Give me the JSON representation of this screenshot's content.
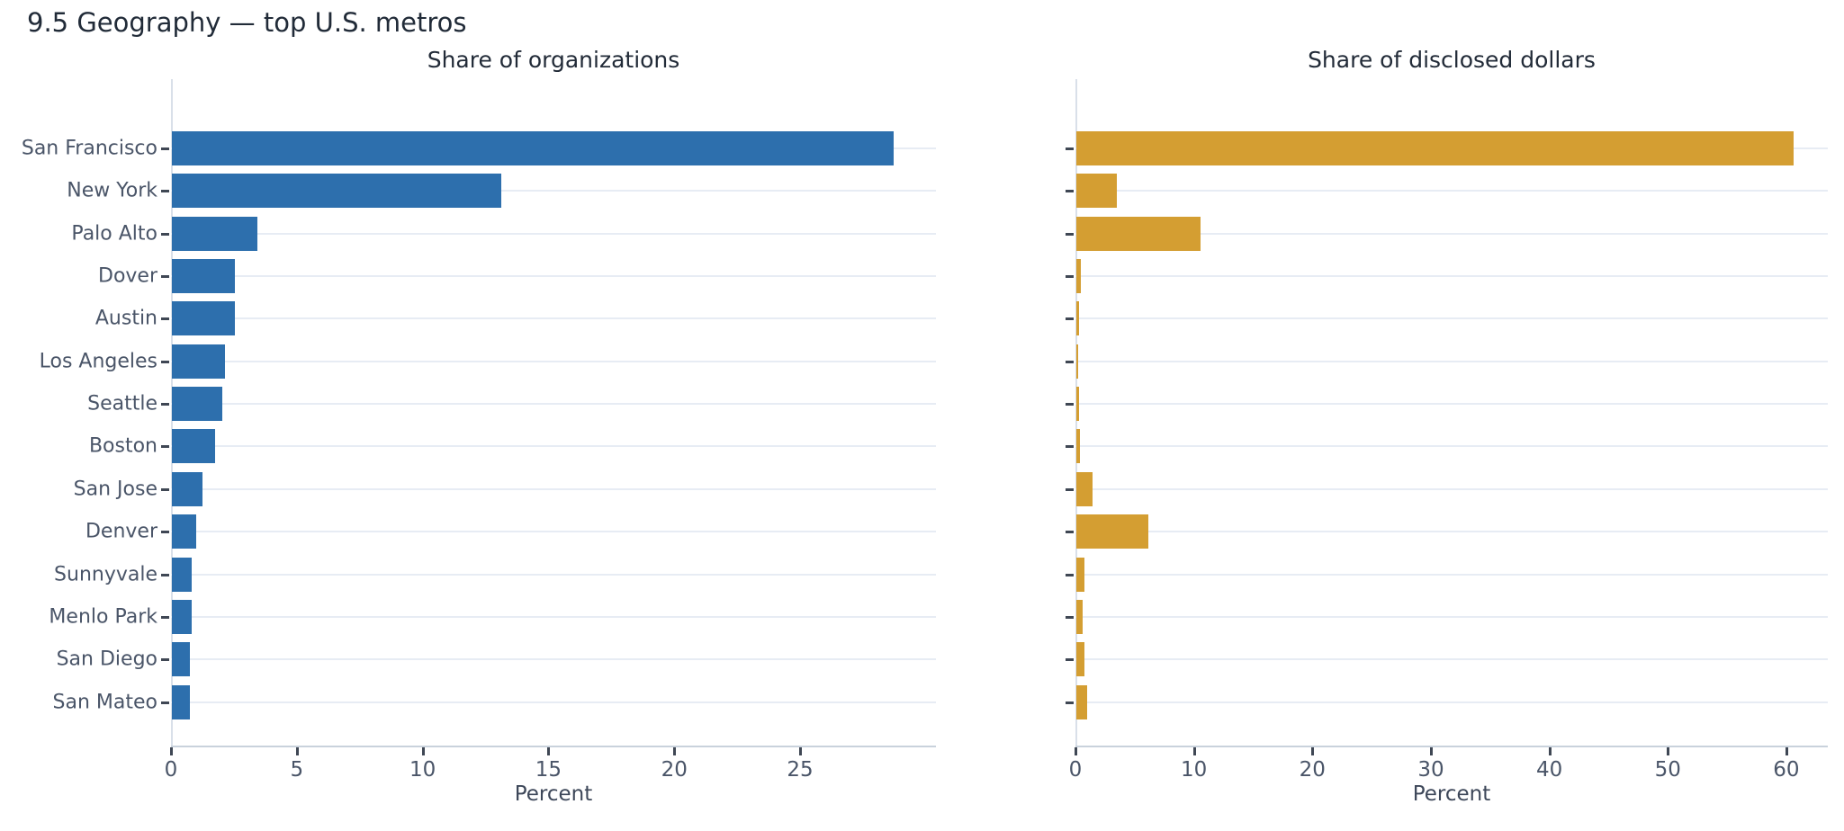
{
  "page_title": "9.5 Geography — top U.S. metros",
  "colors": {
    "org_bar": "#2d6fad",
    "dollar_bar": "#d49e32",
    "gridline": "#e7ecf4",
    "tick_label": "#4a5568",
    "title_text": "#212b38"
  },
  "chart_data": [
    {
      "type": "bar",
      "orientation": "horizontal",
      "title": "Share of organizations",
      "xlabel": "Percent",
      "categories": [
        "San Francisco",
        "New York",
        "Palo Alto",
        "Dover",
        "Austin",
        "Los Angeles",
        "Seattle",
        "Boston",
        "San Jose",
        "Denver",
        "Sunnyvale",
        "Menlo Park",
        "San Diego",
        "San Mateo"
      ],
      "values": [
        28.7,
        13.1,
        3.4,
        2.5,
        2.5,
        2.1,
        2.0,
        1.7,
        1.2,
        0.95,
        0.8,
        0.8,
        0.73,
        0.7
      ],
      "xticks": [
        0,
        5,
        10,
        15,
        20,
        25
      ],
      "xlim": [
        0,
        30.4
      ],
      "bar_color": "#2d6fad",
      "grid": "horizontal per-category",
      "legend": "none"
    },
    {
      "type": "bar",
      "orientation": "horizontal",
      "title": "Share of disclosed dollars",
      "xlabel": "Percent",
      "categories": [
        "San Francisco",
        "New York",
        "Palo Alto",
        "Dover",
        "Austin",
        "Los Angeles",
        "Seattle",
        "Boston",
        "San Jose",
        "Denver",
        "Sunnyvale",
        "Menlo Park",
        "San Diego",
        "San Mateo"
      ],
      "values": [
        60.5,
        3.4,
        10.5,
        0.37,
        0.2,
        0.1,
        0.2,
        0.3,
        1.35,
        6.1,
        0.72,
        0.5,
        0.68,
        0.9
      ],
      "xticks": [
        0,
        10,
        20,
        30,
        40,
        50,
        60
      ],
      "xlim": [
        0,
        63.5
      ],
      "bar_color": "#d49e32",
      "grid": "horizontal per-category",
      "legend": "none"
    }
  ]
}
